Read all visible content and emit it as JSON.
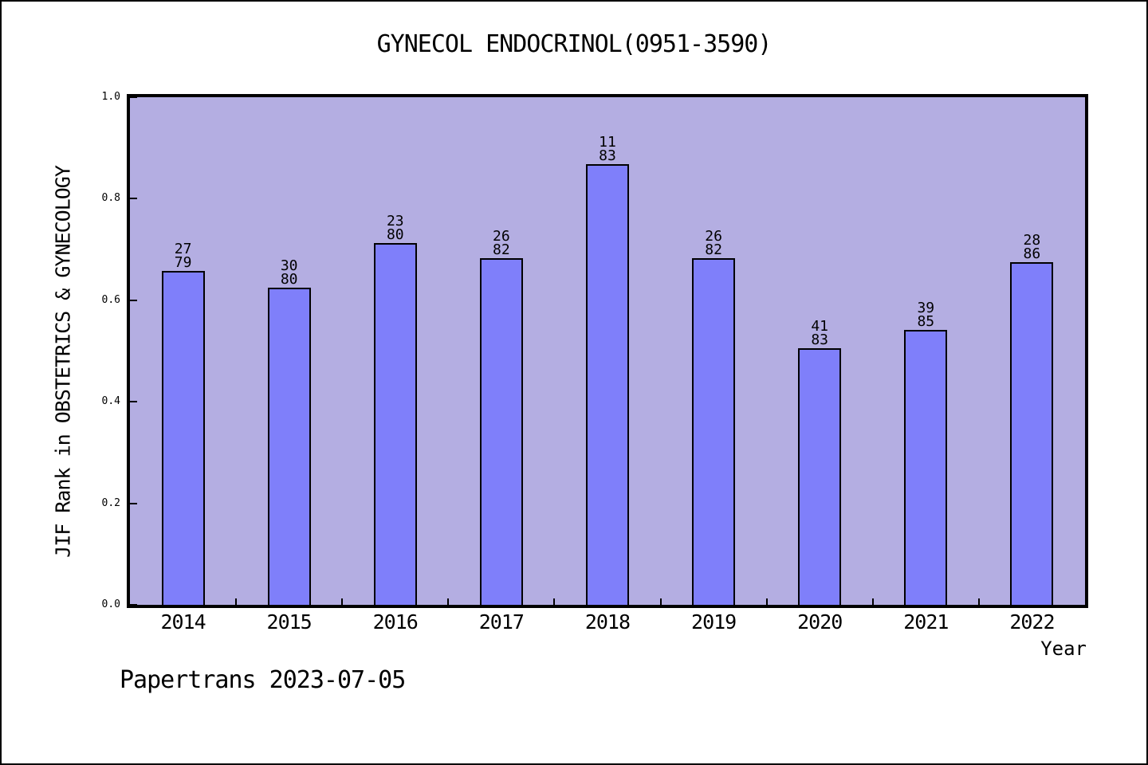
{
  "chart_data": {
    "type": "bar",
    "title": "GYNECOL ENDOCRINOL(0951-3590)",
    "xlabel": "Year",
    "ylabel": "JIF Rank in OBSTETRICS & GYNECOLOGY",
    "ylim": [
      0.0,
      1.0
    ],
    "yticks": [
      0.0,
      0.2,
      0.4,
      0.6,
      0.8,
      1.0
    ],
    "grid": false,
    "legend": "none",
    "categories": [
      "2014",
      "2015",
      "2016",
      "2017",
      "2018",
      "2019",
      "2020",
      "2021",
      "2022"
    ],
    "bars": [
      {
        "year": "2014",
        "rank": "27",
        "total": "79",
        "value": 0.6582
      },
      {
        "year": "2015",
        "rank": "30",
        "total": "80",
        "value": 0.625
      },
      {
        "year": "2016",
        "rank": "23",
        "total": "80",
        "value": 0.7125
      },
      {
        "year": "2017",
        "rank": "26",
        "total": "82",
        "value": 0.6829
      },
      {
        "year": "2018",
        "rank": "11",
        "total": "83",
        "value": 0.8675
      },
      {
        "year": "2019",
        "rank": "26",
        "total": "82",
        "value": 0.6829
      },
      {
        "year": "2020",
        "rank": "41",
        "total": "83",
        "value": 0.506
      },
      {
        "year": "2021",
        "rank": "39",
        "total": "85",
        "value": 0.5412
      },
      {
        "year": "2022",
        "rank": "28",
        "total": "86",
        "value": 0.6744
      }
    ],
    "colors": {
      "bar_fill": "#7F7FFA",
      "bar_edge": "#000000",
      "plot_bg": "#B4AEE2",
      "text": "#000000"
    }
  },
  "footer": {
    "text": "Papertrans 2023-07-05"
  }
}
